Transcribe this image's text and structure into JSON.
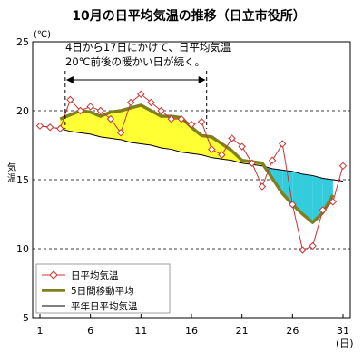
{
  "chart_data": {
    "type": "line",
    "title": "10月の日平均気温の推移（日立市役所）",
    "ylabel": "気温",
    "y_unit": "(℃)",
    "x_unit": "(日)",
    "ylim": [
      5,
      25
    ],
    "xlim": [
      1,
      31
    ],
    "y_ticks": [
      "5",
      "10",
      "15",
      "20",
      "25"
    ],
    "x_ticks": [
      1,
      6,
      11,
      16,
      21,
      26,
      31
    ],
    "x_tick_labels": [
      "1",
      "6",
      "11",
      "16",
      "21",
      "26",
      "31"
    ],
    "dashed_gridlines_y": [
      20,
      15,
      10
    ],
    "x": [
      1,
      2,
      3,
      4,
      5,
      6,
      7,
      8,
      9,
      10,
      11,
      12,
      13,
      14,
      15,
      16,
      17,
      18,
      19,
      20,
      21,
      22,
      23,
      24,
      25,
      26,
      27,
      28,
      29,
      30,
      31
    ],
    "series": [
      {
        "name": "日平均気温",
        "color": "#cc3333",
        "marker": "diamond",
        "values": [
          18.9,
          18.8,
          18.7,
          20.8,
          20.0,
          20.3,
          20.0,
          19.4,
          18.4,
          20.6,
          21.2,
          20.6,
          20.0,
          19.4,
          19.4,
          19.0,
          19.2,
          17.2,
          16.8,
          18.0,
          17.4,
          16.2,
          14.5,
          16.4,
          17.6,
          13.2,
          9.9,
          10.2,
          12.8,
          13.4,
          16.0
        ]
      },
      {
        "name": "5日間移動平均",
        "color": "#808020",
        "values": [
          null,
          null,
          19.4,
          19.7,
          20.0,
          19.9,
          19.6,
          19.9,
          20.0,
          20.2,
          20.4,
          20.0,
          19.6,
          19.6,
          19.5,
          18.8,
          18.2,
          18.1,
          17.6,
          17.1,
          16.4,
          16.3,
          16.2,
          15.1,
          14.0,
          13.2,
          12.5,
          11.9,
          12.6,
          13.9,
          null
        ]
      },
      {
        "name": "平年日平均気温",
        "color": "#000000",
        "values": [
          18.9,
          18.8,
          18.7,
          18.5,
          18.4,
          18.3,
          18.1,
          18.0,
          17.9,
          17.7,
          17.6,
          17.5,
          17.3,
          17.2,
          17.0,
          16.9,
          16.8,
          16.6,
          16.5,
          16.4,
          16.2,
          16.1,
          16.0,
          15.8,
          15.7,
          15.6,
          15.4,
          15.3,
          15.1,
          15.0,
          14.9
        ]
      }
    ],
    "fill_above_color": "#ffff33",
    "fill_below_color": "#33ccdd",
    "annotation": {
      "line1": "4日から17日にかけて、日平均気温",
      "line2": "20℃前後の暖かい日が続く。",
      "range": [
        3.5,
        17.5
      ]
    },
    "legend_position": "bottom-left"
  }
}
